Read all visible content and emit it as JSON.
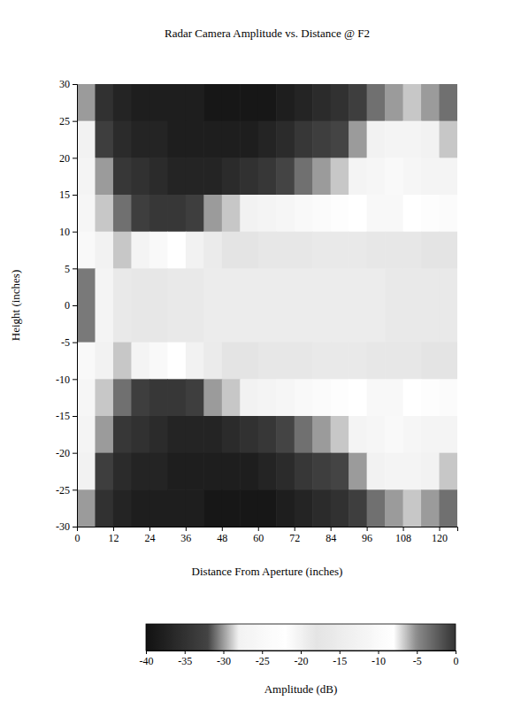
{
  "chart_data": {
    "type": "heatmap",
    "title": "Radar Camera Amplitude vs. Distance @ F2",
    "x_label": "Distance From Aperture (inches)",
    "y_label": "Height (inches)",
    "xlim": [
      0,
      126
    ],
    "ylim": [
      -30,
      30
    ],
    "xticks": [
      0,
      12,
      24,
      36,
      48,
      60,
      72,
      84,
      96,
      108,
      120
    ],
    "yticks": [
      -30,
      -25,
      -20,
      -15,
      -10,
      -5,
      0,
      5,
      10,
      15,
      20,
      25,
      30
    ],
    "x": [
      3,
      9,
      15,
      21,
      27,
      33,
      39,
      45,
      51,
      57,
      63,
      69,
      75,
      81,
      87,
      93,
      99,
      105,
      111,
      117,
      123
    ],
    "y": [
      27.5,
      22.5,
      17.5,
      12.5,
      7.5,
      2.5,
      -2.5,
      -7.5,
      -12.5,
      -17.5,
      -22.5,
      -27.5
    ],
    "values": [
      [
        -30,
        -35,
        -37,
        -38,
        -38,
        -38,
        -38,
        -39,
        -39,
        -39,
        -39,
        -38,
        -37,
        -36,
        -35,
        -33,
        -31,
        -30,
        -29,
        -30,
        -31
      ],
      [
        -28,
        -33,
        -36,
        -37,
        -37,
        -38,
        -38,
        -38,
        -38,
        -38,
        -37,
        -36,
        -34,
        -33,
        -32,
        -30,
        -28,
        -27,
        -27,
        -28,
        -29
      ],
      [
        -27,
        -30,
        -34,
        -35,
        -36,
        -37,
        -37,
        -37,
        -36,
        -35,
        -34,
        -32,
        -31,
        -30,
        -29,
        -27,
        -26,
        -25,
        -26,
        -27,
        -27
      ],
      [
        -26,
        -29,
        -31,
        -33,
        -34,
        -34,
        -33,
        -30,
        -29,
        -28,
        -27,
        -26,
        -25,
        -24,
        -23,
        -22,
        -21,
        -21,
        -22,
        -23,
        -24
      ],
      [
        -25,
        -28,
        -29,
        -27,
        -25,
        -22,
        -20,
        -19,
        -18,
        -18,
        -17,
        -17,
        -17,
        -16,
        -16,
        -16,
        -17,
        -17,
        -17,
        -18,
        -18
      ],
      [
        -4,
        -12,
        -16,
        -17,
        -17,
        -16,
        -16,
        -15,
        -15,
        -15,
        -15,
        -15,
        -15,
        -15,
        -15,
        -15,
        -15,
        -16,
        -16,
        -16,
        -16
      ],
      [
        -4,
        -12,
        -16,
        -17,
        -17,
        -16,
        -16,
        -15,
        -15,
        -15,
        -15,
        -15,
        -15,
        -15,
        -15,
        -15,
        -15,
        -16,
        -16,
        -16,
        -16
      ],
      [
        -25,
        -28,
        -29,
        -27,
        -25,
        -22,
        -20,
        -19,
        -18,
        -18,
        -17,
        -17,
        -17,
        -16,
        -16,
        -16,
        -17,
        -17,
        -17,
        -18,
        -18
      ],
      [
        -26,
        -29,
        -31,
        -33,
        -34,
        -34,
        -33,
        -30,
        -29,
        -28,
        -27,
        -26,
        -25,
        -24,
        -23,
        -22,
        -21,
        -21,
        -22,
        -23,
        -24
      ],
      [
        -27,
        -30,
        -34,
        -35,
        -36,
        -37,
        -37,
        -37,
        -36,
        -35,
        -34,
        -32,
        -31,
        -30,
        -29,
        -27,
        -26,
        -25,
        -26,
        -27,
        -27
      ],
      [
        -28,
        -33,
        -36,
        -37,
        -37,
        -38,
        -38,
        -38,
        -38,
        -38,
        -37,
        -36,
        -34,
        -33,
        -32,
        -30,
        -28,
        -27,
        -27,
        -28,
        -29
      ],
      [
        -30,
        -35,
        -37,
        -38,
        -38,
        -38,
        -38,
        -39,
        -39,
        -39,
        -39,
        -38,
        -37,
        -36,
        -35,
        -33,
        -31,
        -30,
        -29,
        -30,
        -31
      ]
    ],
    "colorbar": {
      "label": "Amplitude (dB)",
      "range": [
        -40,
        0
      ],
      "ticks": [
        -40,
        -35,
        -30,
        -25,
        -20,
        -15,
        -10,
        -5,
        0
      ]
    }
  }
}
